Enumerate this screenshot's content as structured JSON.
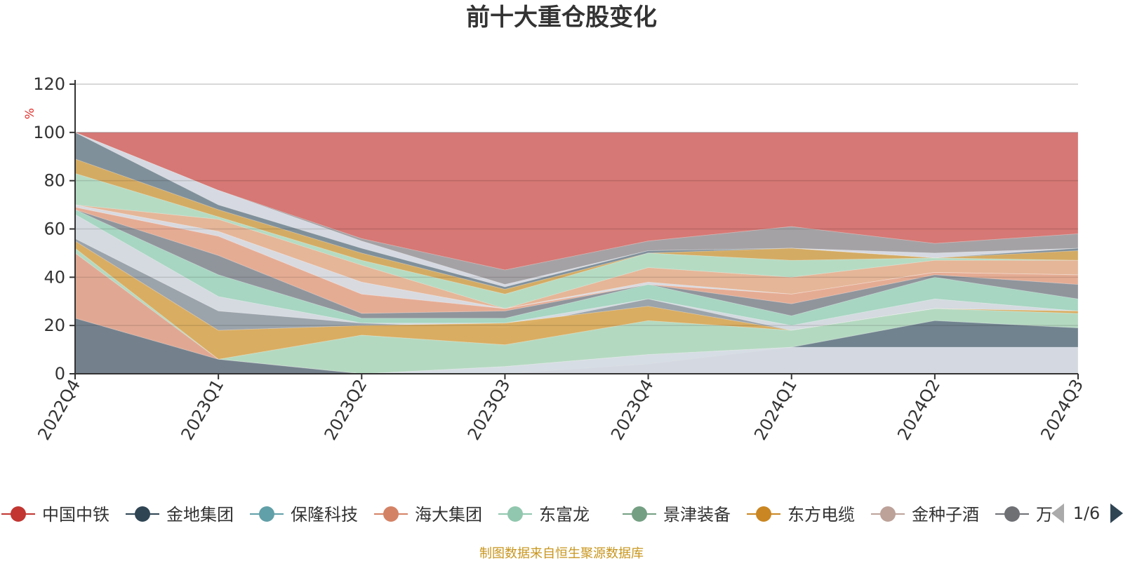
{
  "chart_data": {
    "type": "area",
    "title": "前十大重仓股变化",
    "ylabel": "%",
    "ylim": [
      0,
      120
    ],
    "yticks": [
      0,
      20,
      40,
      60,
      80,
      100,
      120
    ],
    "categories": [
      "2022Q4",
      "2023Q1",
      "2023Q2",
      "2023Q3",
      "2023Q4",
      "2024Q1",
      "2024Q2",
      "2024Q3"
    ],
    "stacked_area_layers": [
      {
        "color": "#d9dde6",
        "values": [
          0,
          0,
          0,
          3,
          8,
          11,
          11,
          11
        ]
      },
      {
        "color": "#6e7e8c",
        "values": [
          23,
          6,
          0,
          0,
          4,
          11,
          22,
          19
        ]
      },
      {
        "color": "#e3a590",
        "values": [
          50,
          6,
          0,
          0,
          0,
          0,
          0,
          0
        ]
      },
      {
        "color": "#b2dbc6",
        "values": [
          52,
          6,
          16,
          12,
          22,
          18,
          27,
          25
        ]
      },
      {
        "color": "#dcae5e",
        "values": [
          55,
          18,
          20,
          21,
          28,
          18,
          27,
          26
        ]
      },
      {
        "color": "#98a0a8",
        "values": [
          56,
          26,
          21,
          19,
          31,
          18,
          27,
          26
        ]
      },
      {
        "color": "#d6dae2",
        "values": [
          66,
          32,
          21,
          21,
          31,
          20,
          31,
          26
        ]
      },
      {
        "color": "#a9d9c4",
        "values": [
          68,
          41,
          23,
          23,
          37,
          24,
          40,
          31
        ]
      },
      {
        "color": "#8b949c",
        "values": [
          68,
          49,
          25,
          26,
          37,
          29,
          41,
          37
        ]
      },
      {
        "color": "#e6aa8f",
        "values": [
          69,
          57,
          33,
          27,
          37,
          33,
          42,
          41
        ]
      },
      {
        "color": "#d8dce4",
        "values": [
          70,
          59,
          38,
          27,
          38,
          33,
          42,
          41
        ]
      },
      {
        "color": "#e8b496",
        "values": [
          70,
          64,
          45,
          27,
          44,
          40,
          47,
          47
        ]
      },
      {
        "color": "#b3ddc8",
        "values": [
          83,
          65,
          47,
          33,
          50,
          47,
          48,
          47
        ]
      },
      {
        "color": "#d8ad60",
        "values": [
          89,
          68,
          50,
          35,
          50,
          52,
          48,
          51
        ]
      },
      {
        "color": "#7b8c97",
        "values": [
          100,
          70,
          52,
          36,
          51,
          52,
          48,
          52
        ]
      },
      {
        "color": "#d8dce4",
        "values": [
          100,
          76,
          55,
          37,
          51,
          52,
          50,
          52
        ]
      },
      {
        "color": "#a2a4a8",
        "values": [
          100,
          76,
          56,
          43,
          55,
          61,
          54,
          58
        ]
      },
      {
        "color": "#d4716e",
        "values": [
          100,
          100,
          100,
          100,
          100,
          100,
          100,
          100
        ]
      }
    ],
    "legend": {
      "placement": "bottom",
      "items": [
        {
          "name": "中国中铁",
          "color": "#c23531"
        },
        {
          "name": "金地集团",
          "color": "#2f4554"
        },
        {
          "name": "保隆科技",
          "color": "#61a0a8"
        },
        {
          "name": "海大集团",
          "color": "#d48265"
        },
        {
          "name": "东富龙",
          "color": "#91c7ae"
        },
        {
          "name": "景津装备",
          "color": "#749f83"
        },
        {
          "name": "东方电缆",
          "color": "#ca8622"
        },
        {
          "name": "金种子酒",
          "color": "#bda29a"
        },
        {
          "name": "万\u0000",
          "color": "#6e7074"
        }
      ],
      "page_indicator": "1/6"
    },
    "source_note": "制图数据来自恒生聚源数据库"
  }
}
